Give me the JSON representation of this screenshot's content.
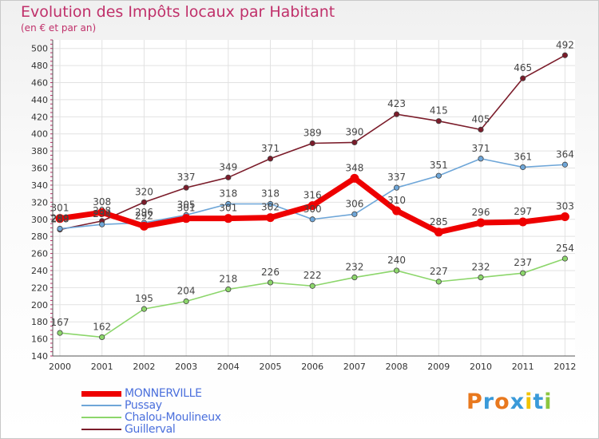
{
  "header": {
    "title": "Evolution des Impôts locaux par Habitant",
    "subtitle": "(en € et par an)"
  },
  "logo": {
    "letters": [
      "P",
      "r",
      "o",
      "x",
      "i",
      "t",
      "i"
    ],
    "colors": [
      "#e8781e",
      "#3a9ad9",
      "#e8781e",
      "#3a9ad9",
      "#f2c300",
      "#3a9ad9",
      "#8cc63f"
    ]
  },
  "chart_data": {
    "type": "line",
    "x": [
      "2000",
      "2001",
      "2002",
      "2003",
      "2004",
      "2005",
      "2006",
      "2007",
      "2008",
      "2009",
      "2010",
      "2011",
      "2012"
    ],
    "ylim": [
      140,
      500
    ],
    "yticks": [
      140,
      160,
      180,
      200,
      220,
      240,
      260,
      280,
      300,
      320,
      340,
      360,
      380,
      400,
      420,
      440,
      460,
      480,
      500
    ],
    "grid": true,
    "legend_position": "bottom-left",
    "series": [
      {
        "name": "Guillerval",
        "color": "#7b1c2a",
        "values": [
          288,
          298,
          320,
          337,
          349,
          371,
          389,
          390,
          423,
          415,
          405,
          465,
          492
        ],
        "labels": [
          "288",
          "298",
          "320",
          "337",
          "349",
          "371",
          "389",
          "390",
          "423",
          "415",
          "405",
          "465",
          "492"
        ]
      },
      {
        "name": "Chalou-Moulineux",
        "color": "#8cd66b",
        "values": [
          167,
          162,
          195,
          204,
          218,
          226,
          222,
          232,
          240,
          227,
          232,
          237,
          254
        ],
        "labels": [
          "167",
          "162",
          "195",
          "204",
          "218",
          "226",
          "222",
          "232",
          "240",
          "227",
          "232",
          "237",
          "254"
        ]
      },
      {
        "name": "Pussay",
        "color": "#6ea6d8",
        "values": [
          289,
          294,
          296,
          305,
          318,
          318,
          300,
          306,
          337,
          351,
          371,
          361,
          364
        ],
        "labels": [
          "289",
          "294",
          "296",
          "305",
          "318",
          "318",
          "300",
          "306",
          "337",
          "351",
          "371",
          "361",
          "364"
        ]
      },
      {
        "name": "MONNERVILLE",
        "color": "#ee0000",
        "values": [
          301,
          308,
          292,
          301,
          301,
          302,
          316,
          348,
          310,
          285,
          296,
          297,
          303
        ],
        "labels": [
          "301",
          "308",
          "292",
          "301",
          "301",
          "302",
          "316",
          "348",
          "310",
          "285",
          "296",
          "297",
          "303"
        ]
      }
    ],
    "legend_order": [
      "MONNERVILLE",
      "Pussay",
      "Chalou-Moulineux",
      "Guillerval"
    ]
  }
}
